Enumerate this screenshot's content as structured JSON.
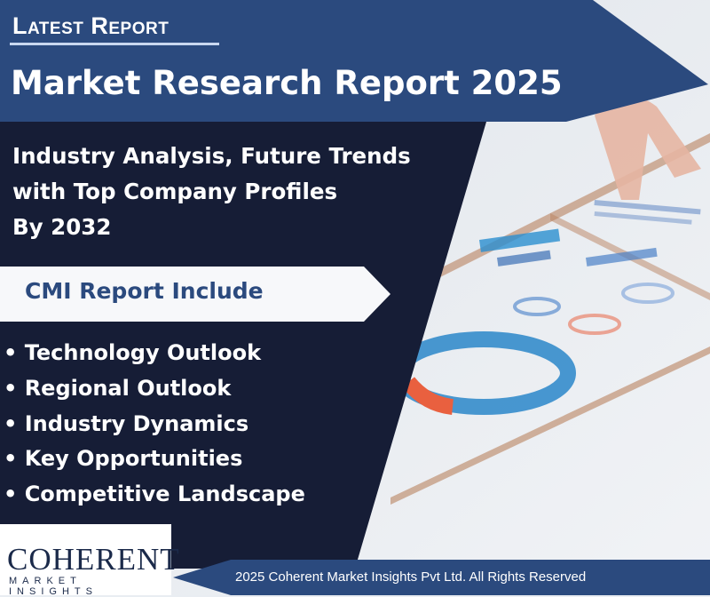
{
  "header": {
    "tag": "Latest Report",
    "title": "Market Research Report 2025"
  },
  "subtitle": {
    "line1": "Industry Analysis, Future Trends",
    "line2": "with Top Company Profiles",
    "line3": "By  2032"
  },
  "includes": {
    "heading": "CMI Report Include",
    "items": [
      "• Technology Outlook",
      "• Regional Outlook",
      "• Industry Dynamics",
      "• Key Opportunities",
      "• Competitive Landscape"
    ]
  },
  "logo": {
    "main": "COHERENT",
    "sub": "MARKET INSIGHTS"
  },
  "footer": {
    "text": "2025 Coherent Market Insights Pvt Ltd. All Rights Reserved"
  },
  "colors": {
    "navy": "#161d36",
    "banner_blue": "#2b4a7e",
    "white": "#ffffff"
  }
}
